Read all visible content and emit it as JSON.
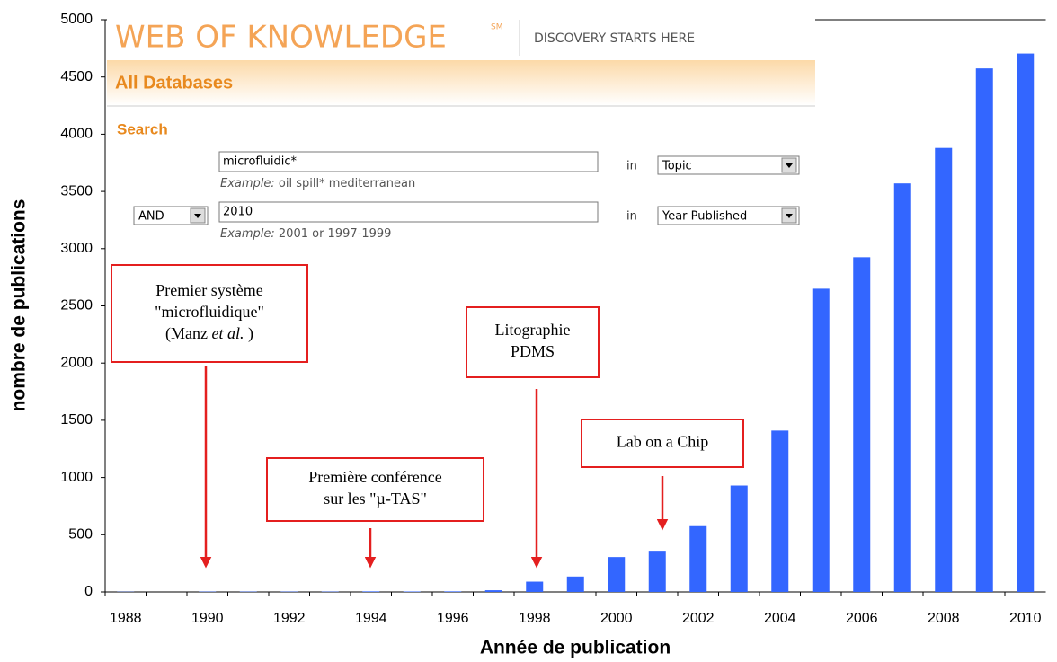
{
  "chart_data": {
    "type": "bar",
    "x_label": "Année de publication",
    "y_label": "nombre de publications",
    "categories": [
      1988,
      null,
      1990,
      null,
      1992,
      null,
      1994,
      null,
      1996,
      null,
      1998,
      null,
      2000,
      null,
      2002,
      null,
      2004,
      null,
      2006,
      null,
      2008,
      null,
      2010
    ],
    "values": [
      2,
      0,
      3,
      3,
      3,
      3,
      5,
      4,
      5,
      15,
      90,
      135,
      305,
      360,
      575,
      930,
      1410,
      2650,
      2925,
      3570,
      3880,
      4575,
      4705
    ],
    "color": "#3366ff",
    "ylim": [
      0,
      5000
    ],
    "yticks": [
      0,
      500,
      1000,
      1500,
      2000,
      2500,
      3000,
      3500,
      4000,
      4500,
      5000
    ],
    "annotations": [
      {
        "lines": [
          [
            "Premier système"
          ],
          [
            "\"microfluidique\""
          ],
          [
            "(Manz ",
            "et al.",
            " )"
          ]
        ]
      },
      {
        "lines": [
          [
            "Première conférence"
          ],
          [
            "sur les \"µ-TAS\""
          ]
        ]
      },
      {
        "lines": [
          [
            "Litographie"
          ],
          [
            "PDMS"
          ]
        ]
      },
      {
        "lines": [
          [
            "Lab on a Chip"
          ]
        ]
      }
    ]
  },
  "screenshot": {
    "logo": "WEB OF KNOWLEDGE",
    "logo_mark": "SM",
    "tagline": "DISCOVERY STARTS HERE",
    "section": "All Databases",
    "search_label": "Search",
    "rows": [
      {
        "query": "microfluidic*",
        "example_label": "Example:",
        "example": " oil spill* mediterranean",
        "in": "in",
        "field": "Topic"
      },
      {
        "operator": "AND",
        "query": "2010",
        "example_label": "Example:",
        "example": " 2001 or 1997-1999",
        "in": "in",
        "field": "Year Published"
      }
    ]
  }
}
